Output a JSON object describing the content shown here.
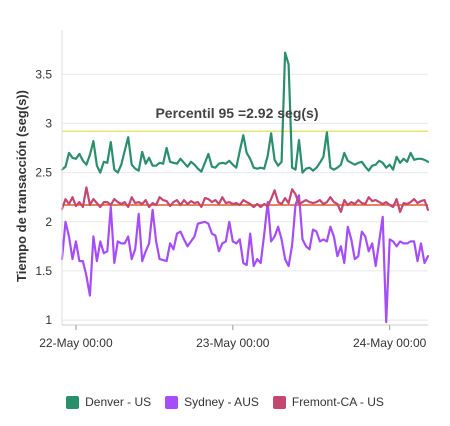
{
  "chart_data": {
    "type": "line",
    "ylabel": "Tiempo de transacción (seg(s))",
    "xlabel": "",
    "ylim": [
      0.95,
      3.95
    ],
    "xlim": [
      0,
      105
    ],
    "y_ticks": [
      1,
      1.5,
      2,
      2.5,
      3,
      3.5
    ],
    "y_tick_labels": [
      "1",
      "1.5",
      "2",
      "2.5",
      "3",
      "3.5"
    ],
    "x_ticks": [
      4,
      49,
      94
    ],
    "x_tick_labels": [
      "22-May 00:00",
      "23-May 00:00",
      "24-May 00:00"
    ],
    "grid": true,
    "legend_position": "bottom",
    "annotation": {
      "text": "Percentil 95  =2.92 seg(s)",
      "value": 2.92
    },
    "reference_lines": [
      {
        "value": 2.92,
        "color": "#ece27a"
      },
      {
        "value": 2.17,
        "color": "#e05a2b"
      }
    ],
    "series": [
      {
        "name": "Denver - US",
        "color": "#2a8f6a",
        "values": [
          2.53,
          2.56,
          2.7,
          2.65,
          2.64,
          2.69,
          2.62,
          2.58,
          2.68,
          2.82,
          2.57,
          2.5,
          2.61,
          2.6,
          2.81,
          2.53,
          2.5,
          2.58,
          2.72,
          2.86,
          2.58,
          2.54,
          2.52,
          2.71,
          2.59,
          2.65,
          2.57,
          2.57,
          2.6,
          2.59,
          2.75,
          2.61,
          2.6,
          2.59,
          2.64,
          2.6,
          2.56,
          2.61,
          2.58,
          2.54,
          2.51,
          2.6,
          2.69,
          2.56,
          2.55,
          2.59,
          2.6,
          2.59,
          2.62,
          2.58,
          2.55,
          2.72,
          2.88,
          2.7,
          2.64,
          2.55,
          2.54,
          2.55,
          2.54,
          2.67,
          2.9,
          2.63,
          2.57,
          2.61,
          3.72,
          3.6,
          2.55,
          2.53,
          2.83,
          2.5,
          2.54,
          2.55,
          2.52,
          2.55,
          2.6,
          2.66,
          2.91,
          2.55,
          2.53,
          2.55,
          2.58,
          2.7,
          2.62,
          2.6,
          2.58,
          2.6,
          2.61,
          2.56,
          2.52,
          2.57,
          2.58,
          2.62,
          2.6,
          2.55,
          2.58,
          2.53,
          2.66,
          2.6,
          2.64,
          2.61,
          2.7,
          2.63,
          2.64,
          2.64,
          2.63,
          2.61
        ]
      },
      {
        "name": "Sydney - AUS",
        "color": "#a64dfa",
        "values": [
          1.62,
          2.0,
          1.85,
          1.62,
          1.8,
          1.6,
          1.6,
          1.45,
          1.25,
          1.85,
          1.6,
          1.8,
          1.68,
          1.7,
          2.15,
          1.58,
          1.8,
          1.78,
          1.78,
          1.85,
          1.62,
          1.72,
          2.08,
          1.6,
          1.7,
          1.78,
          2.12,
          1.8,
          1.62,
          1.61,
          1.6,
          1.78,
          1.72,
          1.88,
          1.9,
          1.82,
          1.75,
          1.8,
          1.85,
          1.98,
          1.99,
          2.0,
          1.98,
          1.88,
          1.86,
          1.7,
          1.78,
          1.8,
          2.0,
          1.8,
          1.78,
          1.82,
          1.58,
          1.56,
          1.88,
          1.55,
          1.62,
          1.58,
          1.87,
          2.2,
          1.8,
          1.85,
          1.95,
          1.82,
          1.62,
          1.55,
          1.76,
          2.17,
          2.27,
          1.82,
          1.75,
          1.72,
          1.92,
          1.9,
          1.8,
          1.82,
          1.8,
          1.95,
          1.85,
          1.65,
          1.75,
          1.58,
          1.95,
          1.82,
          1.62,
          1.65,
          1.9,
          1.85,
          1.7,
          1.78,
          1.55,
          1.8,
          2.05,
          0.98,
          1.82,
          1.8,
          1.75,
          1.8,
          1.78,
          1.78,
          1.8,
          1.8,
          1.6,
          1.78,
          1.58,
          1.65
        ]
      },
      {
        "name": "Fremont-CA - US",
        "color": "#c44771",
        "values": [
          2.13,
          2.23,
          2.18,
          2.25,
          2.16,
          2.2,
          2.15,
          2.35,
          2.17,
          2.23,
          2.19,
          2.15,
          2.2,
          2.2,
          2.17,
          2.23,
          2.2,
          2.18,
          2.2,
          2.15,
          2.25,
          2.19,
          2.2,
          2.18,
          2.22,
          2.15,
          2.19,
          2.17,
          2.25,
          2.22,
          2.21,
          2.16,
          2.2,
          2.22,
          2.17,
          2.22,
          2.18,
          2.21,
          2.19,
          2.2,
          2.15,
          2.24,
          2.23,
          2.2,
          2.22,
          2.18,
          2.25,
          2.19,
          2.2,
          2.18,
          2.19,
          2.17,
          2.22,
          2.2,
          2.18,
          2.15,
          2.18,
          2.15,
          2.18,
          2.16,
          2.23,
          2.32,
          2.2,
          2.18,
          2.24,
          2.19,
          2.33,
          2.28,
          2.18,
          2.2,
          2.22,
          2.2,
          2.19,
          2.2,
          2.22,
          2.18,
          2.2,
          2.25,
          2.2,
          2.18,
          2.1,
          2.22,
          2.17,
          2.2,
          2.18,
          2.22,
          2.19,
          2.18,
          2.25,
          2.21,
          2.22,
          2.2,
          2.18,
          2.2,
          2.17,
          2.15,
          2.23,
          2.1,
          2.19,
          2.18,
          2.2,
          2.23,
          2.19,
          2.21,
          2.22,
          2.12
        ]
      }
    ]
  }
}
